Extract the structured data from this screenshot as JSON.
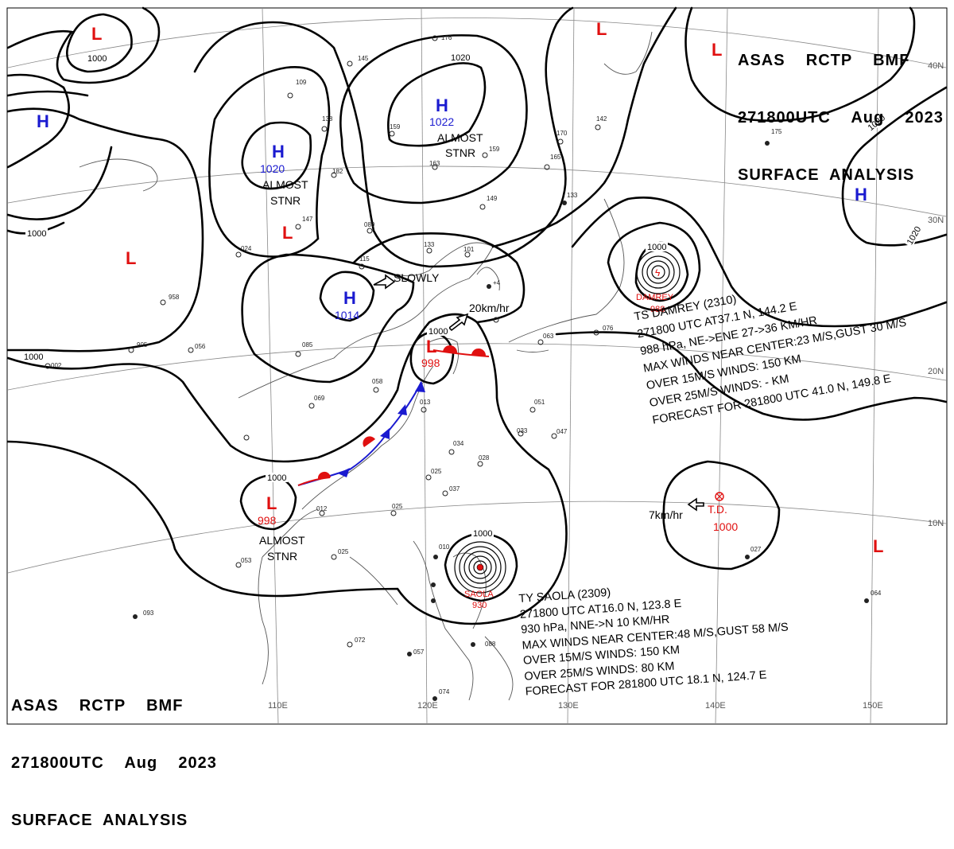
{
  "header": {
    "line1": "ASAS    RCTP    BMF",
    "line2": "271800UTC    Aug    2023",
    "line3": "SURFACE  ANALYSIS"
  },
  "longitudes": [
    "110E",
    "120E",
    "130E",
    "140E",
    "150E"
  ],
  "latitudes": [
    "40N",
    "30N",
    "20N",
    "10N"
  ],
  "isobar_labels": [
    "1000",
    "1020",
    "1000",
    "1000",
    "1020",
    "1020",
    "1000",
    "1000",
    "1000",
    "1000",
    "1000",
    "1000"
  ],
  "systems": {
    "highs": [
      {
        "symbol": "H",
        "pressure": "1022",
        "note": "ALMOST\nSTNR"
      },
      {
        "symbol": "H",
        "pressure": "1020",
        "note": "ALMOST\nSTNR"
      },
      {
        "symbol": "H",
        "pressure": "1014",
        "note": ""
      },
      {
        "symbol": "H",
        "pressure": "",
        "note": ""
      },
      {
        "symbol": "H",
        "pressure": "",
        "note": ""
      }
    ],
    "lows": [
      {
        "symbol": "L",
        "pressure": "998",
        "note": ""
      },
      {
        "symbol": "L",
        "pressure": "998",
        "note": "ALMOST\nSTNR"
      },
      {
        "symbol": "L",
        "pressure": "",
        "note": ""
      }
    ],
    "motions": [
      "SLOWLY",
      "20km/hr",
      "7km/hr"
    ],
    "damrey_label": "DAMREY",
    "damrey_pressure": "988",
    "saola_label": "SAOLA",
    "saola_pressure": "930",
    "td_label": "T.D.",
    "td_pressure": "1000"
  },
  "colors": {
    "high": "#1a1ad0",
    "low": "#e01010",
    "isobar": "#000000",
    "coast": "#555555"
  },
  "damrey_info": {
    "line1": "TS  DAMREY  (2310)",
    "line2": "271800 UTC  AT37.1 N, 144.2 E",
    "line3": "988 hPa, NE->ENE  27->36 KM/HR",
    "line4": "MAX WINDS NEAR CENTER:23 M/S,GUST 30 M/S",
    "line5": "OVER 15M/S WINDS: 150 KM",
    "line6": "OVER 25M/S WINDS: - KM",
    "line7": "FORECAST FOR 281800 UTC 41.0 N, 149.8 E"
  },
  "saola_info": {
    "line1": "TY  SAOLA  (2309)",
    "line2": "271800 UTC  AT16.0 N, 123.8 E",
    "line3": "930 hPa, NNE->N  10 KM/HR",
    "line4": "MAX WINDS NEAR CENTER:48 M/S,GUST 58 M/S",
    "line5": "OVER 15M/S WINDS: 150 KM",
    "line6": "OVER 25M/S WINDS: 80 KM",
    "line7": "FORECAST FOR 281800 UTC 18.1 N, 124.7 E"
  }
}
